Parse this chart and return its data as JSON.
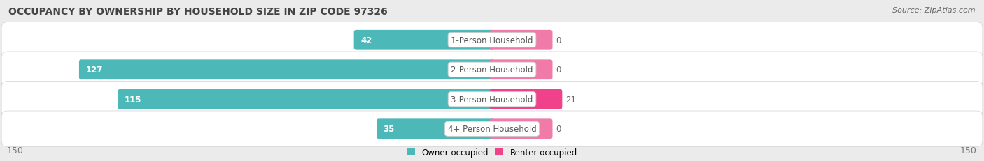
{
  "title": "OCCUPANCY BY OWNERSHIP BY HOUSEHOLD SIZE IN ZIP CODE 97326",
  "source": "Source: ZipAtlas.com",
  "categories": [
    "1-Person Household",
    "2-Person Household",
    "3-Person Household",
    "4+ Person Household"
  ],
  "owner_values": [
    42,
    127,
    115,
    35
  ],
  "renter_values": [
    0,
    0,
    21,
    0
  ],
  "owner_color": "#4db8b8",
  "renter_color": "#f07aa8",
  "renter_color_bright": "#f0428a",
  "axis_limit": 150,
  "bg_color": "#ebebeb",
  "row_bg_color": "#f8f8f8",
  "label_color": "#666666",
  "title_color": "#444444",
  "value_label_fontsize": 8.5,
  "cat_label_fontsize": 8.5,
  "title_fontsize": 10,
  "source_fontsize": 8,
  "legend_fontsize": 8.5,
  "tick_fontsize": 9,
  "renter_stub_value": 18
}
